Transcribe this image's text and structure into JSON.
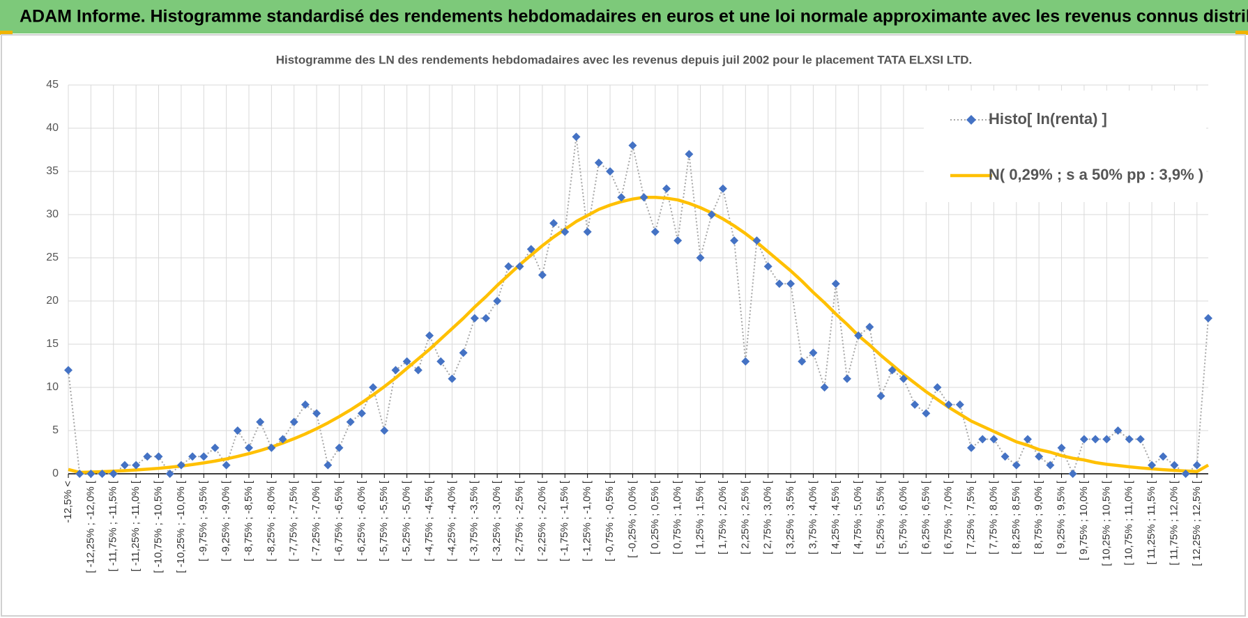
{
  "chart_data": {
    "type": "line",
    "header": "ADAM Informe. Histogramme standardisé des rendements hebdomadaires en euros et une loi normale approximante avec les revenus connus distribués",
    "title": "Histogramme des LN des rendements hebdomadaires avec les revenus depuis juil 2002 pour le placement TATA ELXSI LTD.",
    "categories": [
      "-12,5% <",
      null,
      "[ -12,25% ; -12,0% [",
      null,
      "[ -11,75% ; -11,5% [",
      null,
      "[ -11,25% ; -11,0% [",
      null,
      "[ -10,75% ; -10,5% [",
      null,
      "[ -10,25% ; -10,0% [",
      null,
      "[ -9,75% ; -9,5% [",
      null,
      "[ -9,25% ; -9,0% [",
      null,
      "[ -8,75% ; -8,5% [",
      null,
      "[ -8,25% ; -8,0% [",
      null,
      "[ -7,75% ; -7,5% [",
      null,
      "[ -7,25% ; -7,0% [",
      null,
      "[ -6,75% ; -6,5% [",
      null,
      "[ -6,25% ; -6,0% [",
      null,
      "[ -5,75% ; -5,5% [",
      null,
      "[ -5,25% ; -5,0% [",
      null,
      "[ -4,75% ; -4,5% [",
      null,
      "[ -4,25% ; -4,0% [",
      null,
      "[ -3,75% ; -3,5% [",
      null,
      "[ -3,25% ; -3,0% [",
      null,
      "[ -2,75% ; -2,5% [",
      null,
      "[ -2,25% ; -2,0% [",
      null,
      "[ -1,75% ; -1,5% [",
      null,
      "[ -1,25% ; -1,0% [",
      null,
      "[ -0,75% ; -0,5% [",
      null,
      "[ -0,25% ; 0,0% [",
      null,
      "[ 0,25% ; 0,5% [",
      null,
      "[ 0,75% ; 1,0% [",
      null,
      "[ 1,25% ; 1,5% [",
      null,
      "[ 1,75% ; 2,0% [",
      null,
      "[ 2,25% ; 2,5% [",
      null,
      "[ 2,75% ; 3,0% [",
      null,
      "[ 3,25% ; 3,5% [",
      null,
      "[ 3,75% ; 4,0% [",
      null,
      "[ 4,25% ; 4,5% [",
      null,
      "[ 4,75% ; 5,0% [",
      null,
      "[ 5,25% ; 5,5% [",
      null,
      "[ 5,75% ; 6,0% [",
      null,
      "[ 6,25% ; 6,5% [",
      null,
      "[ 6,75% ; 7,0% [",
      null,
      "[ 7,25% ; 7,5% [",
      null,
      "[ 7,75% ; 8,0% [",
      null,
      "[ 8,25% ; 8,5% [",
      null,
      "[ 8,75% ; 9,0% [",
      null,
      "[ 9,25% ; 9,5% [",
      null,
      "[ 9,75% ; 10,0% [",
      null,
      "[ 10,25% ; 10,5% [",
      null,
      "[ 10,75% ; 11,0% [",
      null,
      "[ 11,25% ; 11,5% [",
      null,
      "[ 11,75% ; 12,0% [",
      null,
      "[ 12,25% ; 12,5% [",
      null
    ],
    "series": [
      {
        "name": "Histo[ ln(renta) ]",
        "color": "#4472c4",
        "line_color": "#a6a6a6",
        "marker": "diamond",
        "values": [
          12,
          0,
          0,
          0,
          0,
          1,
          1,
          2,
          2,
          0,
          1,
          2,
          2,
          3,
          1,
          5,
          3,
          6,
          3,
          4,
          6,
          8,
          7,
          1,
          3,
          6,
          7,
          10,
          5,
          12,
          13,
          12,
          16,
          13,
          11,
          14,
          18,
          18,
          20,
          24,
          24,
          26,
          23,
          29,
          28,
          39,
          28,
          36,
          35,
          32,
          38,
          32,
          28,
          33,
          27,
          37,
          25,
          30,
          33,
          27,
          13,
          27,
          24,
          22,
          22,
          13,
          14,
          10,
          22,
          11,
          16,
          17,
          9,
          12,
          11,
          8,
          7,
          10,
          8,
          8,
          3,
          4,
          4,
          2,
          1,
          4,
          2,
          1,
          3,
          0,
          4,
          4,
          4,
          5,
          4,
          4,
          1,
          2,
          1,
          0,
          1,
          18
        ]
      },
      {
        "name": "N( 0,29% ; s a 50% pp : 3,9% )",
        "color": "#ffc000",
        "values": [
          0.5,
          0.16,
          0.2,
          0.24,
          0.3,
          0.36,
          0.44,
          0.53,
          0.63,
          0.76,
          0.9,
          1.07,
          1.26,
          1.47,
          1.72,
          2.01,
          2.33,
          2.69,
          3.1,
          3.56,
          4.06,
          4.61,
          5.22,
          5.89,
          6.62,
          7.39,
          8.23,
          9.13,
          10.09,
          11.1,
          12.2,
          13.3,
          14.4,
          15.6,
          16.8,
          18,
          19.3,
          20.5,
          21.8,
          23,
          24.2,
          25.3,
          26.4,
          27.4,
          28.3,
          29.2,
          29.9,
          30.6,
          31.1,
          31.5,
          31.8,
          32,
          32,
          31.9,
          31.7,
          31.3,
          30.8,
          30.2,
          29.5,
          28.7,
          27.8,
          26.8,
          25.7,
          24.6,
          23.5,
          22.3,
          21,
          19.8,
          18.5,
          17.3,
          16,
          14.9,
          13.7,
          12.6,
          11.5,
          10.5,
          9.5,
          8.6,
          7.7,
          6.9,
          6.1,
          5.5,
          4.9,
          4.3,
          3.7,
          3.3,
          2.8,
          2.5,
          2.1,
          1.8,
          1.6,
          1.3,
          1.1,
          0.96,
          0.81,
          0.68,
          0.57,
          0.47,
          0.39,
          0.32,
          0.26,
          1
        ]
      }
    ],
    "ylim": [
      0,
      45
    ],
    "yticks": [
      0,
      5,
      10,
      15,
      20,
      25,
      30,
      35,
      40,
      45
    ],
    "grid": true,
    "legend": "top-right"
  }
}
